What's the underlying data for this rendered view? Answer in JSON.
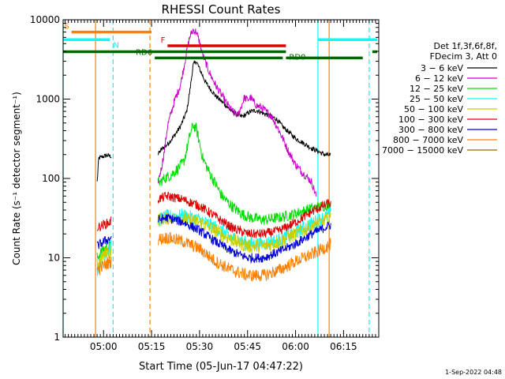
{
  "chart_data": {
    "type": "line",
    "title": "RHESSI Count Rates",
    "xlabel": "Start Time (05-Jun-17 04:47:22)",
    "ylabel": "Count Rate (s⁻¹ detector segment⁻¹)",
    "yscale": "log",
    "ylim": [
      1,
      10000
    ],
    "xlim": [
      "04:47:22",
      "06:26:00"
    ],
    "x_ticks": [
      "05:00",
      "05:15",
      "05:30",
      "05:45",
      "06:00",
      "06:15"
    ],
    "y_ticks": [
      "1",
      "10",
      "100",
      "1000",
      "10000"
    ],
    "legend": {
      "position": "right",
      "header": [
        "Det 1f,3f,6f,8f,",
        "FDecim 3, Att 0"
      ],
      "entries": [
        {
          "label": "3 − 6 keV",
          "color": "#000000"
        },
        {
          "label": "6 − 12 keV",
          "color": "#cc00cc"
        },
        {
          "label": "12 − 25 keV",
          "color": "#00dd00"
        },
        {
          "label": "25 − 50 keV",
          "color": "#00ffff"
        },
        {
          "label": "50 − 100 keV",
          "color": "#cccc00"
        },
        {
          "label": "100 − 300 keV",
          "color": "#dd0000"
        },
        {
          "label": "300 − 800 keV",
          "color": "#0000dd"
        },
        {
          "label": "800 − 7000 keV",
          "color": "#ff8000"
        },
        {
          "label": "7000 − 15000 keV",
          "color": "#996600"
        }
      ]
    },
    "series": [
      {
        "name": "3 − 6 keV",
        "color": "#000000",
        "noise": 0.03,
        "segments": [
          {
            "x": [
              "04:58:00",
              "04:58:30",
              "05:00:00",
              "05:01:00",
              "05:02:30"
            ],
            "y": [
              90,
              180,
              190,
              195,
              190
            ]
          },
          {
            "x": [
              "05:17:00",
              "05:18:00",
              "05:20:00",
              "05:22:00",
              "05:24:00",
              "05:26:00",
              "05:27:00",
              "05:28:00",
              "05:29:00",
              "05:30:00",
              "05:32:00",
              "05:35:00",
              "05:38:00",
              "05:40:00",
              "05:42:00",
              "05:43:00",
              "05:44:00",
              "05:45:00",
              "05:46:00",
              "05:48:00",
              "05:50:00",
              "05:52:00",
              "05:54:00",
              "05:56:00",
              "05:58:00",
              "06:00:00",
              "06:03:00",
              "06:05:00",
              "06:07:00",
              "06:09:00",
              "06:11:00"
            ],
            "y": [
              200,
              230,
              270,
              340,
              450,
              700,
              1300,
              2700,
              3000,
              2400,
              1600,
              1100,
              850,
              700,
              630,
              600,
              620,
              660,
              700,
              720,
              660,
              620,
              560,
              450,
              380,
              320,
              270,
              240,
              220,
              200,
              195
            ]
          }
        ]
      },
      {
        "name": "6 − 12 keV",
        "color": "#cc00cc",
        "noise": 0.05,
        "segments": [
          {
            "x": [
              "05:17:00",
              "05:18:00",
              "05:19:00",
              "05:20:00",
              "05:22:00",
              "05:24:00",
              "05:25:00",
              "05:26:00",
              "05:27:00",
              "05:28:00",
              "05:29:00",
              "05:30:00",
              "05:31:00",
              "05:33:00",
              "05:35:00",
              "05:38:00",
              "05:40:00",
              "05:42:00",
              "05:43:00",
              "05:44:00",
              "05:45:00",
              "05:46:00",
              "05:47:00",
              "05:48:00",
              "05:49:00",
              "05:50:00",
              "05:51:00",
              "05:52:00",
              "05:53:00",
              "05:54:00",
              "05:56:00",
              "05:58:00",
              "06:00:00",
              "06:02:00",
              "06:04:00",
              "06:05:00",
              "06:06:30"
            ],
            "y": [
              90,
              130,
              220,
              460,
              900,
              1500,
              2400,
              4000,
              6200,
              7400,
              7000,
              5200,
              3600,
              2200,
              1500,
              950,
              720,
              620,
              800,
              1050,
              980,
              1050,
              900,
              820,
              800,
              750,
              680,
              640,
              560,
              470,
              320,
              210,
              150,
              120,
              100,
              90,
              60
            ]
          }
        ]
      },
      {
        "name": "12 − 25 keV",
        "color": "#00dd00",
        "noise": 0.07,
        "segments": [
          {
            "x": [
              "04:58:00",
              "05:00:00",
              "05:02:00",
              "05:02:30"
            ],
            "y": [
              10,
              13,
              14,
              16
            ]
          },
          {
            "x": [
              "05:17:00",
              "05:19:00",
              "05:21:00",
              "05:23:00",
              "05:25:00",
              "05:26:00",
              "05:27:00",
              "05:28:00",
              "05:29:00",
              "05:30:00",
              "05:31:00",
              "05:33:00",
              "05:35:00",
              "05:37:00",
              "05:40:00",
              "05:43:00",
              "05:46:00",
              "05:50:00",
              "05:55:00",
              "06:00:00",
              "06:05:00",
              "06:10:00",
              "06:11:00"
            ],
            "y": [
              85,
              100,
              110,
              130,
              160,
              230,
              350,
              470,
              420,
              280,
              180,
              120,
              85,
              60,
              45,
              36,
              32,
              30,
              32,
              36,
              42,
              46,
              45
            ]
          }
        ]
      },
      {
        "name": "25 − 50 keV",
        "color": "#00ffff",
        "noise": 0.09,
        "segments": [
          {
            "x": [
              "04:58:00",
              "05:00:00",
              "05:02:00",
              "05:02:30"
            ],
            "y": [
              7,
              11,
              13,
              14
            ]
          },
          {
            "x": [
              "05:17:00",
              "05:20:00",
              "05:25:00",
              "05:30:00",
              "05:35:00",
              "05:40:00",
              "05:45:00",
              "05:50:00",
              "05:55:00",
              "06:00:00",
              "06:05:00",
              "06:10:00",
              "06:11:00"
            ],
            "y": [
              30,
              33,
              34,
              30,
              24,
              18,
              15,
              15,
              17,
              21,
              27,
              34,
              36
            ]
          }
        ]
      },
      {
        "name": "50 − 100 keV",
        "color": "#cccc00",
        "noise": 0.09,
        "segments": [
          {
            "x": [
              "04:58:00",
              "05:00:00",
              "05:02:30"
            ],
            "y": [
              8,
              11,
              12
            ]
          },
          {
            "x": [
              "05:17:00",
              "05:20:00",
              "05:25:00",
              "05:30:00",
              "05:35:00",
              "05:40:00",
              "05:45:00",
              "05:50:00",
              "05:55:00",
              "06:00:00",
              "06:05:00",
              "06:10:00",
              "06:11:00"
            ],
            "y": [
              30,
              32,
              31,
              28,
              22,
              17,
              14,
              14,
              16,
              20,
              25,
              30,
              32
            ]
          }
        ]
      },
      {
        "name": "100 − 300 keV",
        "color": "#dd0000",
        "noise": 0.06,
        "segments": [
          {
            "x": [
              "04:58:00",
              "05:00:00",
              "05:02:00",
              "05:02:30"
            ],
            "y": [
              24,
              26,
              28,
              30
            ]
          },
          {
            "x": [
              "05:17:00",
              "05:20:00",
              "05:25:00",
              "05:30:00",
              "05:35:00",
              "05:40:00",
              "05:45:00",
              "05:50:00",
              "05:55:00",
              "06:00:00",
              "06:05:00",
              "06:10:00",
              "06:11:00"
            ],
            "y": [
              55,
              60,
              54,
              45,
              33,
              24,
              20,
              20,
              22,
              28,
              38,
              48,
              48
            ]
          }
        ]
      },
      {
        "name": "300 − 800 keV",
        "color": "#0000dd",
        "noise": 0.06,
        "segments": [
          {
            "x": [
              "04:58:00",
              "05:00:00",
              "05:02:30"
            ],
            "y": [
              14,
              16,
              18
            ]
          },
          {
            "x": [
              "05:17:00",
              "05:20:00",
              "05:25:00",
              "05:30:00",
              "05:35:00",
              "05:40:00",
              "05:45:00",
              "05:50:00",
              "05:55:00",
              "06:00:00",
              "06:05:00",
              "06:10:00",
              "06:11:00"
            ],
            "y": [
              30,
              32,
              28,
              22,
              16,
              12,
              10,
              10,
              12,
              15,
              20,
              25,
              26
            ]
          }
        ]
      },
      {
        "name": "800 − 7000 keV",
        "color": "#ff8000",
        "noise": 0.08,
        "segments": [
          {
            "x": [
              "04:58:00",
              "05:00:00",
              "05:02:30"
            ],
            "y": [
              7,
              8,
              9
            ]
          },
          {
            "x": [
              "05:17:00",
              "05:20:00",
              "05:25:00",
              "05:30:00",
              "05:35:00",
              "05:40:00",
              "05:45:00",
              "05:50:00",
              "05:55:00",
              "06:00:00",
              "06:05:00",
              "06:10:00",
              "06:11:00"
            ],
            "y": [
              17,
              18,
              16,
              13,
              9,
              7,
              6,
              6,
              7,
              9,
              11,
              14,
              15
            ]
          }
        ]
      }
    ],
    "flag_bars": [
      {
        "label": "S",
        "color": "#ff8000",
        "y": 7000,
        "label_side": "left",
        "segments": [
          [
            "04:50:00",
            "05:15:00"
          ]
        ]
      },
      {
        "label": "N",
        "color": "#00ffff",
        "y": 5600,
        "label_side": "right",
        "segments": [
          [
            "04:47:22",
            "05:02:00"
          ],
          [
            "06:07:00",
            "06:25:30"
          ]
        ]
      },
      {
        "label": "F",
        "color": "#dd0000",
        "y": 4700,
        "label_side": "left",
        "segments": [
          [
            "05:20:00",
            "05:57:00"
          ]
        ]
      },
      {
        "label": "RD0",
        "color": "#006600",
        "y": 3950,
        "label_side": "right",
        "segments": [
          [
            "04:47:22",
            "05:57:00"
          ],
          [
            "06:24:00",
            "06:25:30"
          ]
        ]
      },
      {
        "label": "RD6",
        "color": "#006600",
        "y": 3300,
        "label_side": "left",
        "segments": [
          [
            "05:16:00",
            "05:56:00"
          ],
          [
            "05:57:00",
            "06:21:00"
          ]
        ]
      }
    ],
    "vertical_lines": [
      {
        "x": "04:47:22",
        "color": "#00ffff",
        "style": "solid"
      },
      {
        "x": "04:57:30",
        "color": "#ff8000",
        "style": "solid"
      },
      {
        "x": "05:03:00",
        "color": "#00ffff",
        "style": "dashed"
      },
      {
        "x": "05:14:30",
        "color": "#ff8000",
        "style": "dashed"
      },
      {
        "x": "06:07:00",
        "color": "#00ffff",
        "style": "solid"
      },
      {
        "x": "06:10:30",
        "color": "#ff8000",
        "style": "solid"
      },
      {
        "x": "06:23:00",
        "color": "#00ffff",
        "style": "dashed"
      }
    ],
    "footer_stamp": "1-Sep-2022 04:48"
  }
}
